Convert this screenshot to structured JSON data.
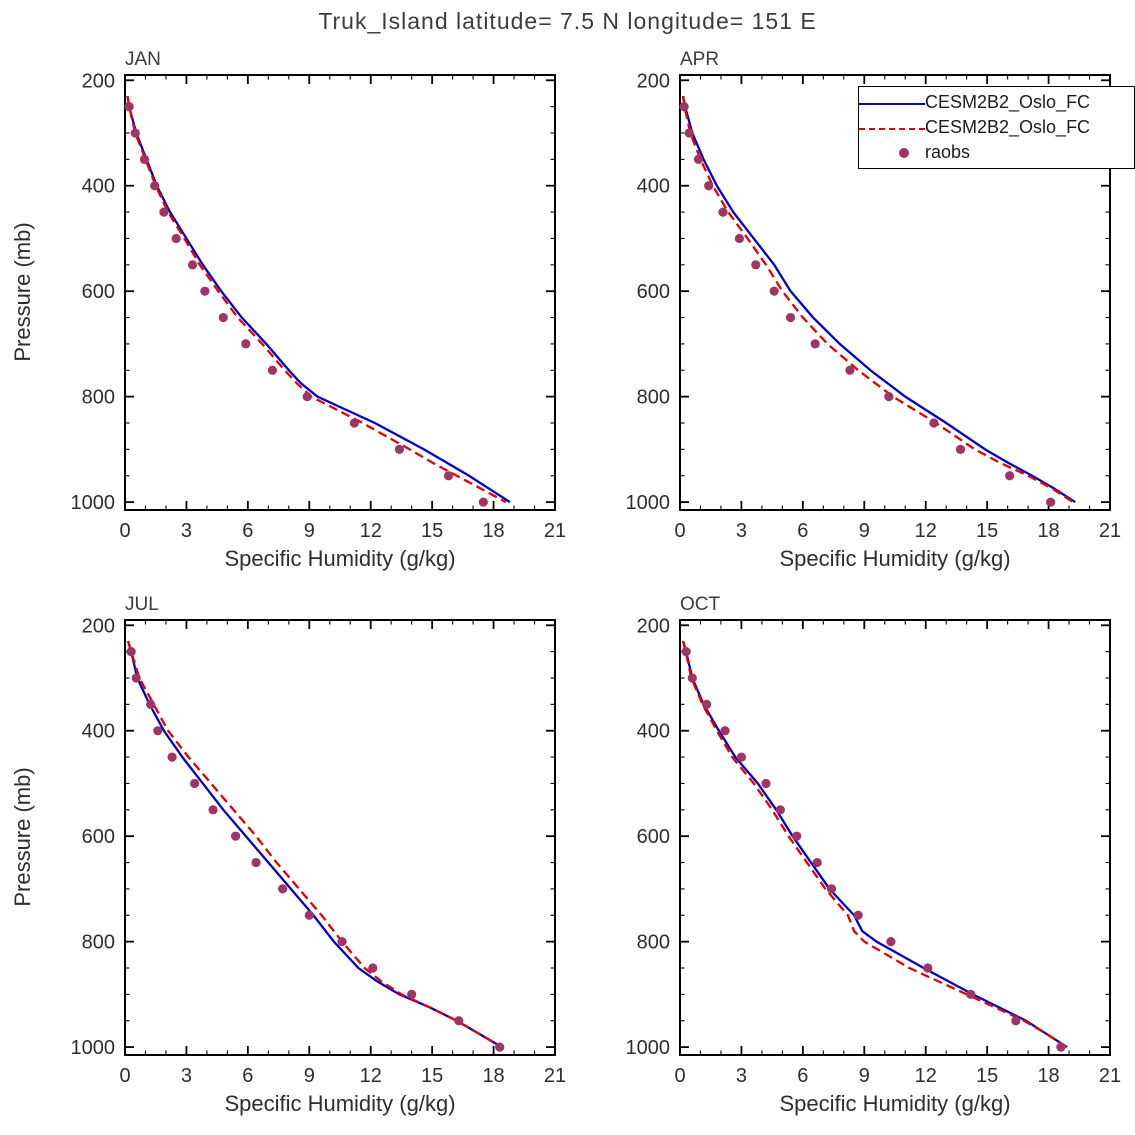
{
  "title": "Truk_Island  latitude= 7.5 N longitude= 151 E",
  "colors": {
    "model_solid": "#0000cd",
    "model_dashed": "#e60000",
    "obs": "#a03464",
    "axis": "#000000",
    "text": "#2e2e2e"
  },
  "axes": {
    "x": {
      "label": "Specific Humidity (g/kg)",
      "min": 0,
      "max": 21,
      "major_ticks": [
        0,
        3,
        6,
        9,
        12,
        15,
        18,
        21
      ],
      "minor_step": 1
    },
    "y": {
      "label": "Pressure (mb)",
      "min": 190,
      "max": 1015,
      "major_ticks": [
        200,
        400,
        600,
        800,
        1000
      ],
      "minor_step": 50,
      "inverted": true
    }
  },
  "legend": {
    "entries": [
      {
        "label": "CESM2B2_Oslo_FC",
        "type": "line",
        "style": "solid",
        "color": "#0000cd"
      },
      {
        "label": "CESM2B2_Oslo_FC",
        "type": "line",
        "style": "dashed",
        "color": "#e60000"
      },
      {
        "label": "raobs",
        "type": "dot",
        "color": "#a03464"
      }
    ]
  },
  "chart_data": [
    {
      "type": "line",
      "title": "JAN",
      "xlabel": "Specific Humidity (g/kg)",
      "ylabel": "Pressure (mb)",
      "xlim": [
        0,
        21
      ],
      "ylim": [
        1015,
        190
      ],
      "series": [
        {
          "name": "CESM2B2_Oslo_FC",
          "style": "solid",
          "color": "#0000cd",
          "pressure": [
            230,
            250,
            300,
            350,
            400,
            450,
            500,
            550,
            600,
            650,
            700,
            750,
            775,
            800,
            850,
            900,
            925,
            950,
            975,
            1000
          ],
          "q": [
            0.12,
            0.2,
            0.55,
            1.05,
            1.55,
            2.2,
            3.0,
            3.8,
            4.7,
            5.7,
            6.9,
            8.0,
            8.6,
            9.4,
            12.2,
            14.6,
            15.7,
            16.8,
            17.8,
            18.8
          ]
        },
        {
          "name": "CESM2B2_Oslo_FC",
          "style": "dashed",
          "color": "#e60000",
          "pressure": [
            230,
            250,
            300,
            350,
            400,
            450,
            500,
            550,
            600,
            650,
            700,
            750,
            775,
            800,
            850,
            900,
            925,
            950,
            975,
            1000
          ],
          "q": [
            0.12,
            0.2,
            0.5,
            1.0,
            1.5,
            2.1,
            2.9,
            3.65,
            4.55,
            5.5,
            6.7,
            7.8,
            8.4,
            9.1,
            11.6,
            13.9,
            15.0,
            16.2,
            17.4,
            18.6
          ]
        },
        {
          "name": "raobs",
          "style": "scatter",
          "color": "#a03464",
          "pressure": [
            250,
            300,
            350,
            400,
            450,
            500,
            550,
            600,
            650,
            700,
            750,
            800,
            850,
            900,
            950,
            1000
          ],
          "q": [
            0.2,
            0.5,
            0.95,
            1.45,
            1.9,
            2.5,
            3.3,
            3.9,
            4.8,
            5.9,
            7.2,
            8.9,
            11.2,
            13.4,
            15.8,
            17.5
          ]
        }
      ]
    },
    {
      "type": "line",
      "title": "APR",
      "xlabel": "Specific Humidity (g/kg)",
      "xlim": [
        0,
        21
      ],
      "ylim": [
        1015,
        190
      ],
      "series": [
        {
          "name": "CESM2B2_Oslo_FC",
          "style": "solid",
          "color": "#0000cd",
          "pressure": [
            230,
            250,
            300,
            350,
            400,
            450,
            500,
            550,
            600,
            650,
            700,
            750,
            800,
            850,
            900,
            925,
            950,
            975,
            1000
          ],
          "q": [
            0.15,
            0.25,
            0.6,
            1.15,
            1.8,
            2.6,
            3.6,
            4.6,
            5.4,
            6.5,
            7.8,
            9.3,
            11.0,
            13.0,
            14.9,
            16.0,
            17.2,
            18.3,
            19.3
          ]
        },
        {
          "name": "CESM2B2_Oslo_FC",
          "style": "dashed",
          "color": "#e60000",
          "pressure": [
            230,
            250,
            300,
            350,
            400,
            450,
            500,
            550,
            600,
            650,
            700,
            750,
            800,
            850,
            900,
            925,
            950,
            975,
            1000
          ],
          "q": [
            0.15,
            0.22,
            0.5,
            1.0,
            1.6,
            2.35,
            3.3,
            4.2,
            5.0,
            6.0,
            7.2,
            8.7,
            10.4,
            12.5,
            14.4,
            15.6,
            17.0,
            18.2,
            19.2
          ]
        },
        {
          "name": "raobs",
          "style": "scatter",
          "color": "#a03464",
          "pressure": [
            250,
            300,
            350,
            400,
            450,
            500,
            550,
            600,
            650,
            700,
            750,
            800,
            850,
            900,
            950,
            1000
          ],
          "q": [
            0.2,
            0.45,
            0.9,
            1.4,
            2.1,
            2.9,
            3.7,
            4.6,
            5.4,
            6.6,
            8.3,
            10.2,
            12.4,
            13.7,
            16.1,
            18.1
          ]
        }
      ]
    },
    {
      "type": "line",
      "title": "JUL",
      "xlabel": "Specific Humidity (g/kg)",
      "ylabel": "Pressure (mb)",
      "xlim": [
        0,
        21
      ],
      "ylim": [
        1015,
        190
      ],
      "series": [
        {
          "name": "CESM2B2_Oslo_FC",
          "style": "solid",
          "color": "#0000cd",
          "pressure": [
            230,
            250,
            300,
            350,
            400,
            450,
            500,
            550,
            600,
            650,
            700,
            750,
            800,
            850,
            875,
            900,
            925,
            950,
            975,
            1000
          ],
          "q": [
            0.15,
            0.3,
            0.6,
            1.2,
            1.9,
            2.8,
            3.8,
            4.8,
            5.9,
            7.0,
            8.1,
            9.2,
            10.2,
            11.4,
            12.3,
            13.4,
            14.9,
            16.2,
            17.3,
            18.4
          ]
        },
        {
          "name": "CESM2B2_Oslo_FC",
          "style": "dashed",
          "color": "#e60000",
          "pressure": [
            230,
            250,
            300,
            350,
            400,
            450,
            500,
            550,
            600,
            650,
            700,
            750,
            800,
            850,
            875,
            900,
            925,
            950,
            975,
            1000
          ],
          "q": [
            0.15,
            0.3,
            0.7,
            1.4,
            2.1,
            3.1,
            4.2,
            5.3,
            6.4,
            7.4,
            8.5,
            9.6,
            10.6,
            11.7,
            12.5,
            13.5,
            14.9,
            16.2,
            17.3,
            18.4
          ]
        },
        {
          "name": "raobs",
          "style": "scatter",
          "color": "#a03464",
          "pressure": [
            250,
            300,
            350,
            400,
            450,
            500,
            550,
            600,
            650,
            700,
            750,
            800,
            850,
            900,
            950,
            1000
          ],
          "q": [
            0.3,
            0.55,
            1.25,
            1.6,
            2.3,
            3.4,
            4.3,
            5.4,
            6.4,
            7.7,
            9.0,
            10.6,
            12.1,
            14.0,
            16.3,
            18.3
          ]
        }
      ]
    },
    {
      "type": "line",
      "title": "OCT",
      "xlabel": "Specific Humidity (g/kg)",
      "xlim": [
        0,
        21
      ],
      "ylim": [
        1015,
        190
      ],
      "series": [
        {
          "name": "CESM2B2_Oslo_FC",
          "style": "solid",
          "color": "#0000cd",
          "pressure": [
            230,
            250,
            300,
            350,
            400,
            450,
            500,
            550,
            600,
            650,
            700,
            750,
            780,
            800,
            850,
            900,
            925,
            950,
            975,
            1000
          ],
          "q": [
            0.15,
            0.3,
            0.6,
            1.15,
            1.9,
            2.7,
            3.8,
            4.7,
            5.5,
            6.4,
            7.3,
            8.5,
            8.9,
            9.6,
            11.9,
            14.3,
            15.6,
            16.9,
            17.9,
            18.9
          ]
        },
        {
          "name": "CESM2B2_Oslo_FC",
          "style": "dashed",
          "color": "#e60000",
          "pressure": [
            230,
            250,
            300,
            350,
            400,
            450,
            500,
            550,
            600,
            650,
            700,
            750,
            780,
            800,
            850,
            900,
            925,
            950,
            975,
            1000
          ],
          "q": [
            0.15,
            0.28,
            0.55,
            1.1,
            1.8,
            2.55,
            3.6,
            4.5,
            5.3,
            6.2,
            7.1,
            8.2,
            8.5,
            9.0,
            11.2,
            14.0,
            15.4,
            16.8,
            17.9,
            18.9
          ]
        },
        {
          "name": "raobs",
          "style": "scatter",
          "color": "#a03464",
          "pressure": [
            250,
            300,
            350,
            400,
            450,
            500,
            550,
            600,
            650,
            700,
            750,
            800,
            850,
            900,
            950,
            1000
          ],
          "q": [
            0.3,
            0.6,
            1.3,
            2.2,
            3.0,
            4.2,
            4.9,
            5.7,
            6.7,
            7.4,
            8.7,
            10.3,
            12.1,
            14.2,
            16.4,
            18.6
          ]
        }
      ]
    }
  ]
}
